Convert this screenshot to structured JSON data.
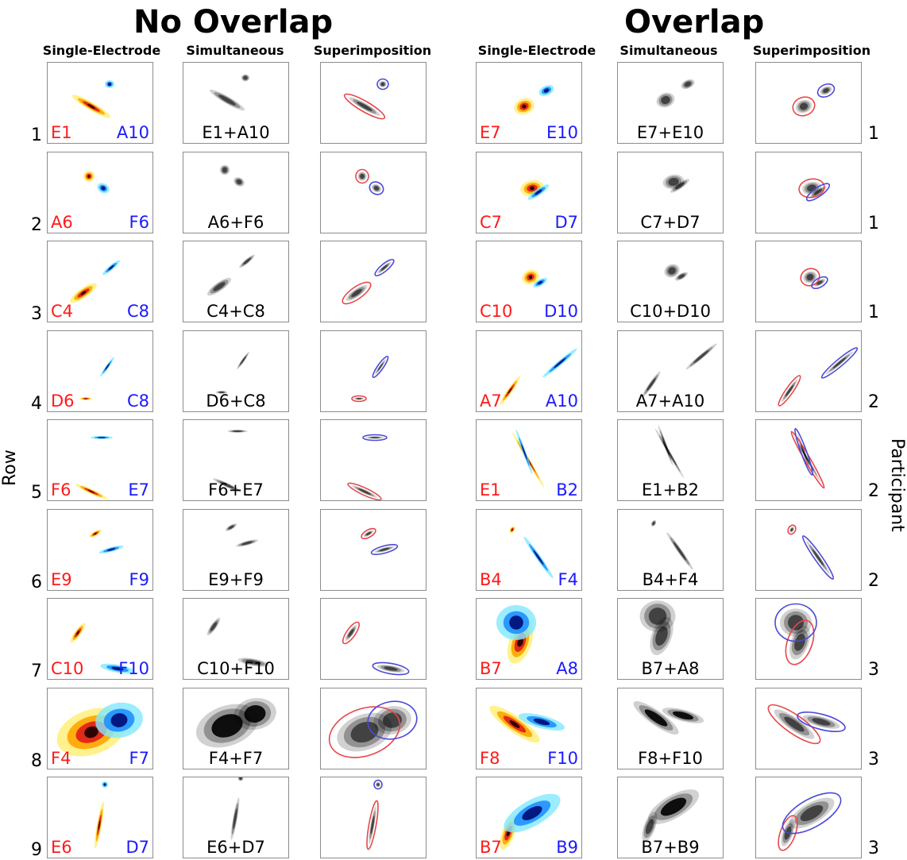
{
  "titles": {
    "left": "No Overlap",
    "right": "Overlap"
  },
  "column_headers": [
    "Single-Electrode",
    "Simultaneous",
    "Superimposition",
    "Single-Electrode",
    "Simultaneous",
    "Superimposition"
  ],
  "axis_labels": {
    "row": "Row",
    "participant": "Participant"
  },
  "colors": {
    "electrode1": "#ff1a1a",
    "electrode2": "#1a1aff",
    "outline1": "#e8474a",
    "outline2": "#4a4ad8",
    "panel_border": "#8c8c8c"
  },
  "rows": [
    {
      "row": "1",
      "participant": "1",
      "no_overlap": {
        "e1": "E1",
        "e2": "A10",
        "combo": "E1+A10"
      },
      "overlap": {
        "e1": "E7",
        "e2": "E10",
        "combo": "E7+E10"
      }
    },
    {
      "row": "2",
      "participant": "1",
      "no_overlap": {
        "e1": "A6",
        "e2": "F6",
        "combo": "A6+F6"
      },
      "overlap": {
        "e1": "C7",
        "e2": "D7",
        "combo": "C7+D7"
      }
    },
    {
      "row": "3",
      "participant": "1",
      "no_overlap": {
        "e1": "C4",
        "e2": "C8",
        "combo": "C4+C8"
      },
      "overlap": {
        "e1": "C10",
        "e2": "D10",
        "combo": "C10+D10"
      }
    },
    {
      "row": "4",
      "participant": "2",
      "no_overlap": {
        "e1": "D6",
        "e2": "C8",
        "combo": "D6+C8"
      },
      "overlap": {
        "e1": "A7",
        "e2": "A10",
        "combo": "A7+A10"
      }
    },
    {
      "row": "5",
      "participant": "2",
      "no_overlap": {
        "e1": "F6",
        "e2": "E7",
        "combo": "F6+E7"
      },
      "overlap": {
        "e1": "E1",
        "e2": "B2",
        "combo": "E1+B2"
      }
    },
    {
      "row": "6",
      "participant": "2",
      "no_overlap": {
        "e1": "E9",
        "e2": "F9",
        "combo": "E9+F9"
      },
      "overlap": {
        "e1": "B4",
        "e2": "F4",
        "combo": "B4+F4"
      }
    },
    {
      "row": "7",
      "participant": "3",
      "no_overlap": {
        "e1": "C10",
        "e2": "F10",
        "combo": "C10+F10"
      },
      "overlap": {
        "e1": "B7",
        "e2": "A8",
        "combo": "B7+A8"
      }
    },
    {
      "row": "8",
      "participant": "3",
      "no_overlap": {
        "e1": "F4",
        "e2": "F7",
        "combo": "F4+F7"
      },
      "overlap": {
        "e1": "F8",
        "e2": "F10",
        "combo": "F8+F10"
      }
    },
    {
      "row": "9",
      "participant": "3",
      "no_overlap": {
        "e1": "E6",
        "e2": "D7",
        "combo": "E6+D7"
      },
      "overlap": {
        "e1": "B7",
        "e2": "B9",
        "combo": "B7+B9"
      }
    }
  ]
}
